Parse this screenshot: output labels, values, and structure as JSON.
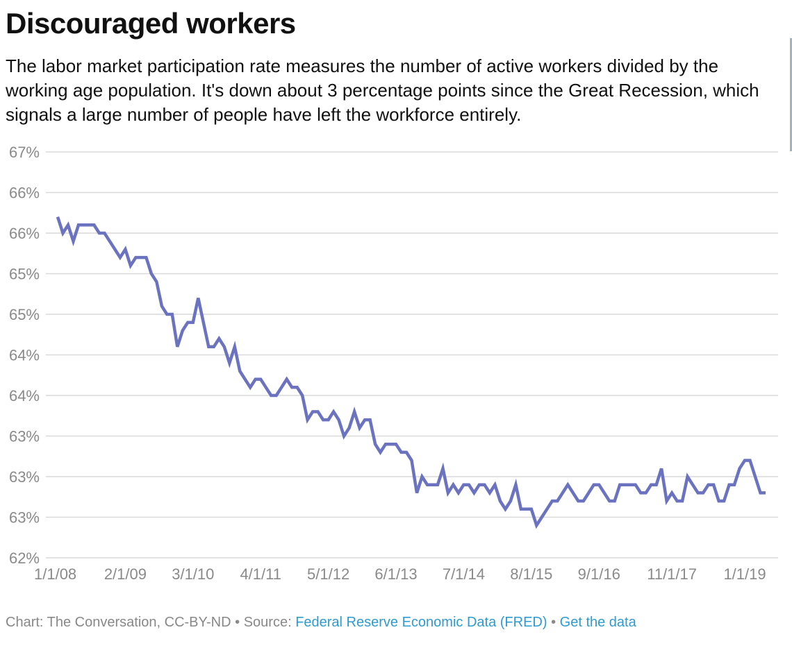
{
  "header": {
    "title": "Discouraged workers",
    "subtitle": "The labor market participation rate measures the number of active workers divided by the working age population. It's down about 3 percentage points since the Great Recession, which signals a large number of people have left the workforce entirely."
  },
  "footer": {
    "credit": "Chart: The Conversation, CC-BY-ND",
    "sep1": " • Source: ",
    "source_link": "Federal Reserve Economic Data (FRED)",
    "sep2": " • ",
    "data_link": "Get the data"
  },
  "colors": {
    "line": "#6b73c1",
    "grid": "#d9d9d9",
    "tick": "#8a8a8a",
    "link": "#2e9bd0"
  },
  "chart_data": {
    "type": "line",
    "title": "Discouraged workers",
    "xlabel": "",
    "ylabel": "",
    "ylim": [
      62.0,
      67.0
    ],
    "y_ticks": [
      62.0,
      62.5,
      63.0,
      63.5,
      64.0,
      64.5,
      65.0,
      65.5,
      66.0,
      66.5,
      67.0
    ],
    "y_tick_labels": [
      "62%",
      "63%",
      "63%",
      "63%",
      "64%",
      "64%",
      "65%",
      "65%",
      "66%",
      "66%",
      "67%"
    ],
    "x_tick_labels": [
      "1/1/08",
      "2/1/09",
      "3/1/10",
      "4/1/11",
      "5/1/12",
      "6/1/13",
      "7/1/14",
      "8/1/15",
      "9/1/16",
      "11/1/17",
      "1/1/19"
    ],
    "x_tick_index": [
      0,
      13,
      26,
      39,
      52,
      65,
      78,
      91,
      104,
      118,
      132
    ],
    "grid": true,
    "legend": "none",
    "series": [
      {
        "values": [
          66.2,
          66.0,
          66.1,
          65.9,
          66.1,
          66.1,
          66.1,
          66.1,
          66.0,
          66.0,
          65.9,
          65.8,
          65.7,
          65.8,
          65.6,
          65.7,
          65.7,
          65.7,
          65.5,
          65.4,
          65.1,
          65.0,
          65.0,
          64.6,
          64.8,
          64.9,
          64.9,
          65.2,
          64.9,
          64.6,
          64.6,
          64.7,
          64.6,
          64.4,
          64.6,
          64.3,
          64.2,
          64.1,
          64.2,
          64.2,
          64.1,
          64.0,
          64.0,
          64.1,
          64.2,
          64.1,
          64.1,
          64.0,
          63.7,
          63.8,
          63.8,
          63.7,
          63.7,
          63.8,
          63.7,
          63.5,
          63.6,
          63.8,
          63.6,
          63.7,
          63.7,
          63.4,
          63.3,
          63.4,
          63.4,
          63.4,
          63.3,
          63.3,
          63.2,
          62.8,
          63.0,
          62.9,
          62.9,
          62.9,
          63.1,
          62.8,
          62.9,
          62.8,
          62.9,
          62.9,
          62.8,
          62.9,
          62.9,
          62.8,
          62.9,
          62.7,
          62.6,
          62.7,
          62.9,
          62.6,
          62.6,
          62.6,
          62.4,
          62.5,
          62.6,
          62.7,
          62.7,
          62.8,
          62.9,
          62.8,
          62.7,
          62.7,
          62.8,
          62.9,
          62.9,
          62.8,
          62.7,
          62.7,
          62.9,
          62.9,
          62.9,
          62.9,
          62.8,
          62.8,
          62.9,
          62.9,
          63.1,
          62.7,
          62.8,
          62.7,
          62.7,
          63.0,
          62.9,
          62.8,
          62.8,
          62.9,
          62.9,
          62.7,
          62.7,
          62.9,
          62.9,
          63.1,
          63.2,
          63.2,
          63.0,
          62.8,
          62.8
        ]
      }
    ]
  }
}
